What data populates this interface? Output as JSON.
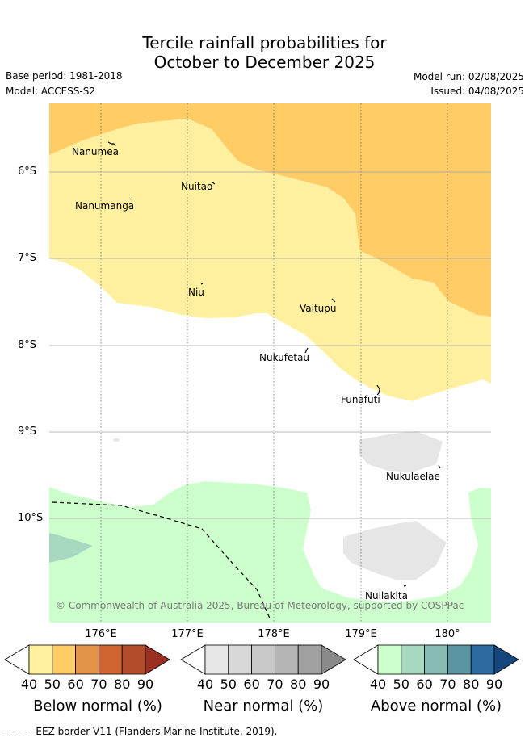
{
  "title": {
    "line1": "Tercile rainfall probabilities for",
    "line2": "October to December 2025"
  },
  "meta": {
    "base_period": "Base period: 1981-2018",
    "model": "Model: ACCESS-S2",
    "model_run": "Model run: 02/08/2025",
    "issued": "Issued: 04/08/2025"
  },
  "map": {
    "latitude_labels": [
      "6°S",
      "7°S",
      "8°S",
      "9°S",
      "10°S"
    ],
    "longitude_labels": [
      "176°E",
      "177°E",
      "178°E",
      "179°E",
      "180°"
    ],
    "places": [
      "Nanumea",
      "Nuitao",
      "Nanumanga",
      "Niu",
      "Vaitupu",
      "Nukufetau",
      "Funafuti",
      "Nukulaelae",
      "Nuilakita"
    ],
    "copyright": "© Commonwealth of Australia 2025, Bureau of Meteorology, supported by COSPPac",
    "colors": {
      "below_40_50": "#fff0a0",
      "below_50_60": "#ffcc66",
      "near_40_50": "#e6e6e6",
      "above_40_50": "#ccffcc",
      "above_50_60": "#a6d9bf"
    }
  },
  "colorbars": [
    {
      "label": "Below normal (%)",
      "ticks": [
        "40",
        "50",
        "60",
        "70",
        "80",
        "90"
      ],
      "colors": [
        "#fff0a0",
        "#ffcc66",
        "#e39449",
        "#d06531",
        "#b24c2b",
        "#9a2f22"
      ]
    },
    {
      "label": "Near normal (%)",
      "ticks": [
        "40",
        "50",
        "60",
        "70",
        "80",
        "90"
      ],
      "colors": [
        "#e6e6e6",
        "#d8d8d8",
        "#c8c8c8",
        "#b5b5b5",
        "#a0a0a0",
        "#8a8a8a"
      ]
    },
    {
      "label": "Above normal (%)",
      "ticks": [
        "40",
        "50",
        "60",
        "70",
        "80",
        "90"
      ],
      "colors": [
        "#ccffcc",
        "#a6d9bf",
        "#86bab2",
        "#5a95a1",
        "#2d6a9f",
        "#15477e"
      ]
    }
  ],
  "footer": "--  --  -- EEZ border V11 (Flanders Marine Institute, 2019)."
}
